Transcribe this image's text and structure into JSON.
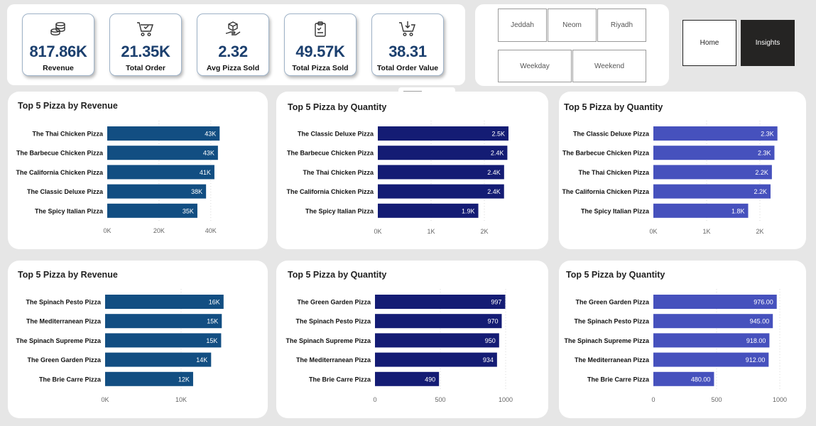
{
  "kpis": [
    {
      "value": "817.86K",
      "label": "Revenue",
      "icon": "coins-icon"
    },
    {
      "value": "21.35K",
      "label": "Total Order",
      "icon": "cart-icon"
    },
    {
      "value": "2.32",
      "label": "Avg Pizza Sold",
      "icon": "box-hand-icon"
    },
    {
      "value": "49.57K",
      "label": "Total Pizza Sold",
      "icon": "clipboard-icon"
    },
    {
      "value": "38.31",
      "label": "Total Order Value",
      "icon": "cart-download-icon"
    }
  ],
  "slicers": {
    "cities": [
      "Jeddah",
      "Neom",
      "Riyadh"
    ],
    "days": [
      "Weekday",
      "Weekend"
    ]
  },
  "nav": {
    "home": "Home",
    "insights": "Insights"
  },
  "colors": {
    "revenue": "#124e82",
    "quantity": "#141c74",
    "quantity_alt": "#4651bd",
    "accent": "#1b3f6e"
  },
  "chart_data": [
    {
      "type": "bar",
      "orientation": "horizontal",
      "title": "Top 5 Pizza by Revenue",
      "categories": [
        "The Thai Chicken Pizza",
        "The Barbecue Chicken Pizza",
        "The California Chicken Pizza",
        "The Classic Deluxe Pizza",
        "The Spicy Italian Pizza"
      ],
      "values": [
        43434,
        42768,
        41410,
        38181,
        34831
      ],
      "value_labels": [
        "43K",
        "43K",
        "41K",
        "38K",
        "35K"
      ],
      "xlim": [
        0,
        45000
      ],
      "ticks": [
        0,
        20000,
        40000
      ],
      "tick_labels": [
        "0K",
        "20K",
        "40K"
      ],
      "color": "#124e82"
    },
    {
      "type": "bar",
      "orientation": "horizontal",
      "title": "Top 5 Pizza by Quantity",
      "categories": [
        "The Classic Deluxe Pizza",
        "The Barbecue Chicken Pizza",
        "The Thai Chicken Pizza",
        "The California Chicken Pizza",
        "The Spicy Italian Pizza"
      ],
      "values": [
        2453,
        2432,
        2371,
        2370,
        1887
      ],
      "value_labels": [
        "2.5K",
        "2.4K",
        "2.4K",
        "2.4K",
        "1.9K"
      ],
      "xlim": [
        0,
        2600
      ],
      "ticks": [
        0,
        1000,
        2000
      ],
      "tick_labels": [
        "0K",
        "1K",
        "2K"
      ],
      "color": "#141c74"
    },
    {
      "type": "bar",
      "orientation": "horizontal",
      "title": "Top 5 Pizza by Quantity",
      "categories": [
        "The Classic Deluxe Pizza",
        "The Barbecue Chicken Pizza",
        "The Thai Chicken Pizza",
        "The California Chicken Pizza",
        "The Spicy Italian Pizza"
      ],
      "values": [
        2329,
        2273,
        2225,
        2200,
        1780
      ],
      "value_labels": [
        "2.3K",
        "2.3K",
        "2.2K",
        "2.2K",
        "1.8K"
      ],
      "xlim": [
        0,
        2600
      ],
      "ticks": [
        0,
        1000,
        2000
      ],
      "tick_labels": [
        "0K",
        "1K",
        "2K"
      ],
      "color": "#4651bd"
    },
    {
      "type": "bar",
      "orientation": "horizontal",
      "title": "Top 5 Pizza by Revenue",
      "categories": [
        "The Spinach Pesto Pizza",
        "The Mediterranean Pizza",
        "The Spinach Supreme Pizza",
        "The Green Garden Pizza",
        "The Brie Carre Pizza"
      ],
      "values": [
        15596,
        15360,
        15277,
        13956,
        11588
      ],
      "value_labels": [
        "16K",
        "15K",
        "15K",
        "14K",
        "12K"
      ],
      "xlim": [
        0,
        15800
      ],
      "ticks": [
        0,
        10000
      ],
      "tick_labels": [
        "0K",
        "10K"
      ],
      "color": "#124e82"
    },
    {
      "type": "bar",
      "orientation": "horizontal",
      "title": "Top 5 Pizza by Quantity",
      "categories": [
        "The Green Garden Pizza",
        "The Spinach Pesto Pizza",
        "The Spinach Supreme Pizza",
        "The Mediterranean Pizza",
        "The Brie Carre Pizza"
      ],
      "values": [
        997,
        970,
        950,
        934,
        490
      ],
      "value_labels": [
        "997",
        "970",
        "950",
        "934",
        "490"
      ],
      "xlim": [
        0,
        1000
      ],
      "ticks": [
        0,
        500,
        1000
      ],
      "tick_labels": [
        "0",
        "500",
        "1000"
      ],
      "color": "#141c74"
    },
    {
      "type": "bar",
      "orientation": "horizontal",
      "title": "Top 5 Pizza by Quantity",
      "categories": [
        "The Green Garden Pizza",
        "The Spinach Pesto Pizza",
        "The Spinach Supreme Pizza",
        "The Mediterranean Pizza",
        "The Brie Carre Pizza"
      ],
      "values": [
        976,
        945,
        918,
        912,
        480
      ],
      "value_labels": [
        "976.00",
        "945.00",
        "918.00",
        "912.00",
        "480.00"
      ],
      "xlim": [
        0,
        1000
      ],
      "ticks": [
        0,
        500,
        1000
      ],
      "tick_labels": [
        "0",
        "500",
        "1000"
      ],
      "color": "#4651bd"
    }
  ]
}
